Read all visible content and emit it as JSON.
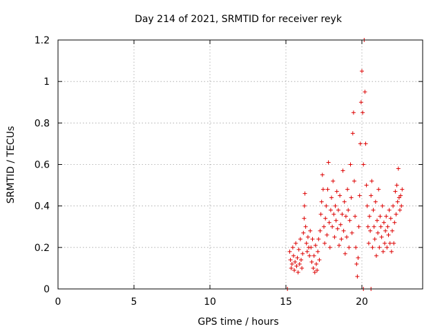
{
  "chart_data": {
    "type": "scatter",
    "title": "Day 214 of 2021, SRMTID for receiver reyk",
    "xlabel": "GPS time / hours",
    "ylabel": "SRMTID / TECUs",
    "xlim": [
      0,
      24
    ],
    "ylim": [
      0,
      1.2
    ],
    "grid": true,
    "marker": "+",
    "series_color": "#dd0000",
    "x_ticks": [
      0,
      5,
      10,
      15,
      20
    ],
    "y_ticks": [
      0,
      0.2,
      0.4,
      0.6,
      0.8,
      1,
      1.2
    ],
    "x_tick_labels": [
      "0",
      "5",
      "10",
      "15",
      "20"
    ],
    "y_tick_labels": [
      "0",
      "0.2",
      "0.4",
      "0.6",
      "0.8",
      "1",
      "1.2"
    ],
    "series": [
      {
        "name": "SRMTID",
        "points": [
          [
            15.1,
            0.0
          ],
          [
            15.25,
            0.18
          ],
          [
            15.3,
            0.14
          ],
          [
            15.35,
            0.1
          ],
          [
            15.4,
            0.12
          ],
          [
            15.45,
            0.2
          ],
          [
            15.5,
            0.16
          ],
          [
            15.55,
            0.09
          ],
          [
            15.6,
            0.13
          ],
          [
            15.65,
            0.22
          ],
          [
            15.7,
            0.11
          ],
          [
            15.75,
            0.15
          ],
          [
            15.8,
            0.08
          ],
          [
            15.85,
            0.19
          ],
          [
            15.9,
            0.12
          ],
          [
            15.95,
            0.24
          ],
          [
            16.0,
            0.14
          ],
          [
            16.05,
            0.1
          ],
          [
            16.1,
            0.17
          ],
          [
            16.15,
            0.27
          ],
          [
            16.2,
            0.34
          ],
          [
            16.22,
            0.4
          ],
          [
            16.25,
            0.46
          ],
          [
            16.3,
            0.3
          ],
          [
            16.35,
            0.22
          ],
          [
            16.4,
            0.18
          ],
          [
            16.45,
            0.25
          ],
          [
            16.5,
            0.2
          ],
          [
            16.55,
            0.16
          ],
          [
            16.6,
            0.28
          ],
          [
            16.65,
            0.2
          ],
          [
            16.7,
            0.13
          ],
          [
            16.75,
            0.24
          ],
          [
            16.8,
            0.1
          ],
          [
            16.85,
            0.16
          ],
          [
            16.9,
            0.08
          ],
          [
            16.95,
            0.21
          ],
          [
            17.0,
            0.12
          ],
          [
            17.05,
            0.09
          ],
          [
            17.1,
            0.18
          ],
          [
            17.15,
            0.24
          ],
          [
            17.2,
            0.14
          ],
          [
            17.25,
            0.28
          ],
          [
            17.3,
            0.36
          ],
          [
            17.35,
            0.42
          ],
          [
            17.4,
            0.55
          ],
          [
            17.45,
            0.48
          ],
          [
            17.5,
            0.3
          ],
          [
            17.55,
            0.22
          ],
          [
            17.6,
            0.34
          ],
          [
            17.65,
            0.4
          ],
          [
            17.7,
            0.26
          ],
          [
            17.75,
            0.48
          ],
          [
            17.8,
            0.61
          ],
          [
            17.85,
            0.32
          ],
          [
            17.9,
            0.2
          ],
          [
            17.95,
            0.38
          ],
          [
            18.0,
            0.44
          ],
          [
            18.05,
            0.3
          ],
          [
            18.1,
            0.52
          ],
          [
            18.15,
            0.36
          ],
          [
            18.2,
            0.25
          ],
          [
            18.25,
            0.4
          ],
          [
            18.3,
            0.33
          ],
          [
            18.35,
            0.47
          ],
          [
            18.4,
            0.29
          ],
          [
            18.45,
            0.38
          ],
          [
            18.5,
            0.21
          ],
          [
            18.55,
            0.45
          ],
          [
            18.6,
            0.31
          ],
          [
            18.65,
            0.24
          ],
          [
            18.7,
            0.36
          ],
          [
            18.75,
            0.57
          ],
          [
            18.8,
            0.28
          ],
          [
            18.85,
            0.42
          ],
          [
            18.9,
            0.17
          ],
          [
            18.95,
            0.35
          ],
          [
            19.0,
            0.25
          ],
          [
            19.05,
            0.48
          ],
          [
            19.1,
            0.38
          ],
          [
            19.15,
            0.2
          ],
          [
            19.2,
            0.33
          ],
          [
            19.25,
            0.6
          ],
          [
            19.3,
            0.44
          ],
          [
            19.35,
            0.27
          ],
          [
            19.4,
            0.75
          ],
          [
            19.45,
            0.85
          ],
          [
            19.5,
            0.52
          ],
          [
            19.55,
            0.35
          ],
          [
            19.6,
            0.2
          ],
          [
            19.65,
            0.12
          ],
          [
            19.7,
            0.06
          ],
          [
            19.75,
            0.15
          ],
          [
            19.8,
            0.3
          ],
          [
            19.85,
            0.45
          ],
          [
            19.9,
            0.7
          ],
          [
            19.95,
            0.9
          ],
          [
            20.0,
            1.05
          ],
          [
            20.05,
            0.85
          ],
          [
            20.1,
            0.6
          ],
          [
            20.15,
            1.2
          ],
          [
            20.2,
            0.95
          ],
          [
            20.25,
            0.7
          ],
          [
            20.3,
            0.5
          ],
          [
            20.35,
            0.4
          ],
          [
            20.4,
            0.3
          ],
          [
            20.45,
            0.22
          ],
          [
            20.5,
            0.35
          ],
          [
            20.55,
            0.28
          ],
          [
            20.6,
            0.45
          ],
          [
            20.65,
            0.52
          ],
          [
            20.7,
            0.2
          ],
          [
            20.75,
            0.38
          ],
          [
            20.8,
            0.3
          ],
          [
            20.85,
            0.24
          ],
          [
            20.9,
            0.42
          ],
          [
            20.95,
            0.16
          ],
          [
            21.0,
            0.33
          ],
          [
            21.05,
            0.27
          ],
          [
            21.1,
            0.48
          ],
          [
            21.15,
            0.2
          ],
          [
            21.2,
            0.35
          ],
          [
            21.25,
            0.3
          ],
          [
            21.3,
            0.25
          ],
          [
            21.35,
            0.4
          ],
          [
            21.4,
            0.18
          ],
          [
            21.45,
            0.32
          ],
          [
            21.5,
            0.22
          ],
          [
            21.55,
            0.28
          ],
          [
            21.6,
            0.35
          ],
          [
            21.65,
            0.2
          ],
          [
            21.7,
            0.3
          ],
          [
            21.75,
            0.26
          ],
          [
            21.8,
            0.38
          ],
          [
            21.85,
            0.22
          ],
          [
            21.9,
            0.34
          ],
          [
            21.95,
            0.18
          ],
          [
            22.0,
            0.28
          ],
          [
            22.05,
            0.4
          ],
          [
            22.1,
            0.22
          ],
          [
            22.15,
            0.32
          ],
          [
            22.2,
            0.47
          ],
          [
            22.25,
            0.36
          ],
          [
            22.3,
            0.5
          ],
          [
            22.35,
            0.42
          ],
          [
            22.4,
            0.58
          ],
          [
            22.45,
            0.44
          ],
          [
            22.5,
            0.38
          ],
          [
            22.55,
            0.45
          ],
          [
            22.6,
            0.4
          ],
          [
            22.65,
            0.48
          ],
          [
            20.1,
            0.0
          ],
          [
            20.6,
            0.0
          ]
        ]
      }
    ]
  }
}
